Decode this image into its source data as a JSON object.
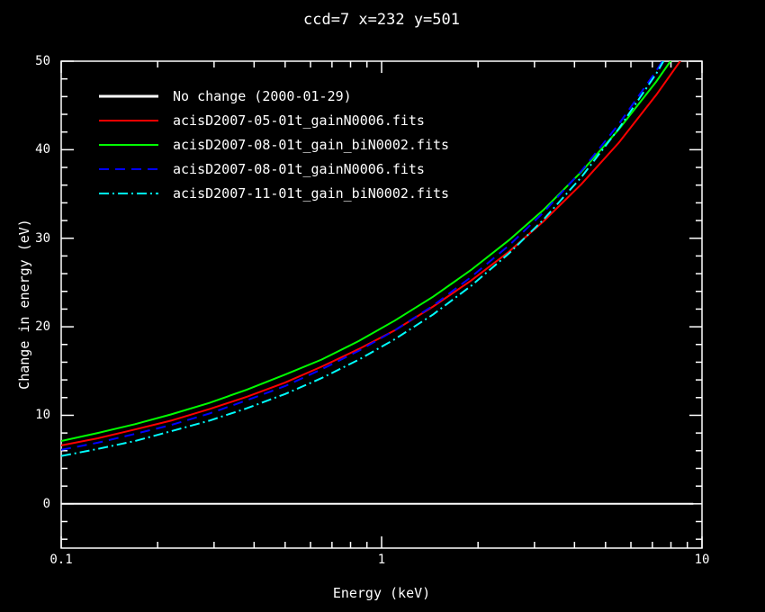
{
  "figure": {
    "title": "ccd=7 x=232 y=501",
    "xlabel": "Energy (keV)",
    "ylabel": "Change in energy (eV)",
    "background": "#000000",
    "foreground": "#ffffff"
  },
  "axes": {
    "x": {
      "scale": "log",
      "min": 0.1,
      "max": 10,
      "tick_values": [
        0.1,
        1,
        10
      ],
      "tick_labels": [
        "0.1",
        "1",
        "10"
      ],
      "minor_mantissas": [
        2,
        3,
        4,
        5,
        6,
        7,
        8,
        9
      ]
    },
    "y": {
      "scale": "linear",
      "min": -5,
      "max": 50,
      "tick_values": [
        0,
        10,
        20,
        30,
        40,
        50
      ],
      "tick_labels": [
        "0",
        "10",
        "20",
        "30",
        "40",
        "50"
      ],
      "minor_step": 2
    }
  },
  "chart_data": {
    "type": "line",
    "title": "ccd=7 x=232 y=501",
    "xlabel": "Energy (keV)",
    "ylabel": "Change in energy (eV)",
    "x_scale": "log",
    "xlim": [
      0.1,
      10
    ],
    "ylim": [
      -5,
      50
    ],
    "grid": false,
    "legend_position": "top-left-inside",
    "x": [
      0.1,
      0.13,
      0.17,
      0.22,
      0.29,
      0.38,
      0.5,
      0.65,
      0.85,
      1.1,
      1.45,
      1.9,
      2.5,
      3.2,
      4.2,
      5.5,
      7.2,
      9.4
    ],
    "series": [
      {
        "name": "No change (2000-01-29)",
        "color": "#ffffff",
        "style": "solid",
        "values": [
          0,
          0,
          0,
          0,
          0,
          0,
          0,
          0,
          0,
          0,
          0,
          0,
          0,
          0,
          0,
          0,
          0,
          0
        ]
      },
      {
        "name": "acisD2007-05-01t_gainN0006.fits",
        "color": "#ff0000",
        "style": "solid",
        "values": [
          6.6,
          7.4,
          8.4,
          9.4,
          10.7,
          12.1,
          13.7,
          15.5,
          17.5,
          19.6,
          22.3,
          25.2,
          28.5,
          31.9,
          36.1,
          40.8,
          46.2,
          52.1
        ]
      },
      {
        "name": "acisD2007-08-01t_gain_biN0002.fits",
        "color": "#00ff00",
        "style": "solid",
        "values": [
          7.1,
          8.0,
          9.0,
          10.1,
          11.4,
          12.9,
          14.6,
          16.3,
          18.4,
          20.7,
          23.4,
          26.4,
          29.8,
          33.2,
          37.5,
          42.3,
          47.7,
          53.7
        ]
      },
      {
        "name": "acisD2007-08-01t_gainN0006.fits",
        "color": "#0000ff",
        "style": "dashed",
        "values": [
          6.1,
          6.9,
          7.9,
          8.9,
          10.2,
          11.7,
          13.3,
          15.2,
          17.3,
          19.6,
          22.4,
          25.6,
          29.2,
          32.9,
          37.6,
          42.9,
          48.9,
          55.7
        ]
      },
      {
        "name": "acisD2007-11-01t_gain_biN0002.fits",
        "color": "#00ffff",
        "style": "dashdot",
        "values": [
          5.4,
          6.2,
          7.1,
          8.2,
          9.4,
          10.8,
          12.4,
          14.2,
          16.3,
          18.6,
          21.4,
          24.6,
          28.3,
          32.1,
          36.9,
          42.4,
          48.6,
          55.8
        ]
      }
    ]
  }
}
